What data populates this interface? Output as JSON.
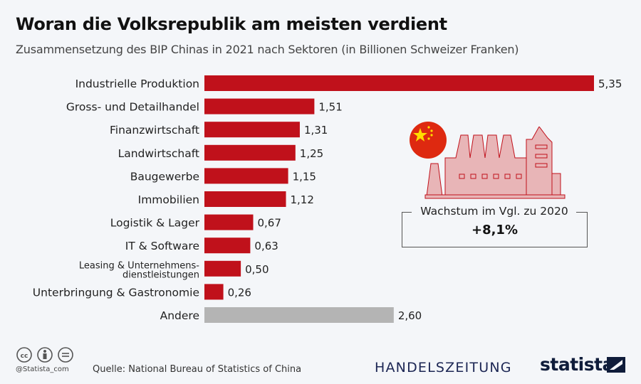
{
  "title": "Woran die Volksrepublik am meisten verdient",
  "subtitle": "Zusammensetzung des BIP Chinas in 2021 nach Sektoren (in Billionen Schweizer Franken)",
  "colors": {
    "bar": "#c0111b",
    "other_bar": "#b4b4b4",
    "illustration": "#e8b5b7",
    "flag": "#de2910",
    "star": "#ffde00"
  },
  "chart_data": {
    "type": "bar",
    "orientation": "horizontal",
    "categories": [
      "Industrielle Produktion",
      "Gross- und Detailhandel",
      "Finanzwirtschaft",
      "Landwirtschaft",
      "Baugewerbe",
      "Immobilien",
      "Logistik & Lager",
      "IT & Software",
      "Leasing & Unternehmens-\ndienstleistungen",
      "Unterbringung & Gastronomie",
      "Andere"
    ],
    "values": [
      5.35,
      1.51,
      1.31,
      1.25,
      1.15,
      1.12,
      0.67,
      0.63,
      0.5,
      0.26,
      2.6
    ],
    "value_labels": [
      "5,35",
      "1,51",
      "1,31",
      "1,25",
      "1,15",
      "1,12",
      "0,67",
      "0,63",
      "0,50",
      "0,26",
      "2,60"
    ],
    "xlim": [
      0,
      5.35
    ],
    "grid": false,
    "xlabel": "",
    "ylabel": ""
  },
  "callout": {
    "label": "Wachstum im Vgl. zu 2020",
    "value": "+8,1%"
  },
  "footer": {
    "handle": "@Statista_com",
    "source": "Quelle: National Bureau of Statistics of China",
    "partner": "HANDELSZEITUNG",
    "brand": "statista",
    "license_icons": [
      "cc-icon",
      "by-icon",
      "nd-icon"
    ]
  }
}
